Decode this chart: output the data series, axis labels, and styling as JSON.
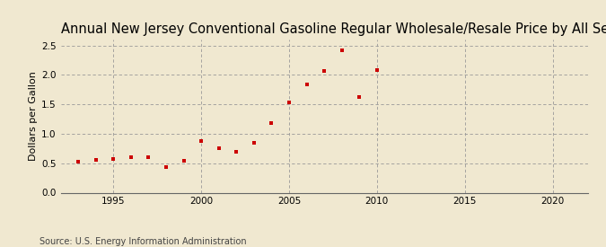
{
  "title": "Annual New Jersey Conventional Gasoline Regular Wholesale/Resale Price by All Sellers",
  "ylabel": "Dollars per Gallon",
  "source": "Source: U.S. Energy Information Administration",
  "background_color": "#f0e8d0",
  "plot_bg_color": "#f0e8d0",
  "marker_color": "#cc0000",
  "years": [
    1993,
    1994,
    1995,
    1996,
    1997,
    1998,
    1999,
    2000,
    2001,
    2002,
    2003,
    2004,
    2005,
    2006,
    2007,
    2008,
    2009,
    2010
  ],
  "values": [
    0.52,
    0.56,
    0.57,
    0.6,
    0.6,
    0.44,
    0.54,
    0.87,
    0.76,
    0.7,
    0.85,
    1.18,
    1.53,
    1.83,
    2.06,
    2.42,
    1.62,
    2.08
  ],
  "xlim": [
    1992,
    2022
  ],
  "ylim": [
    0.0,
    2.6
  ],
  "xticks": [
    1995,
    2000,
    2005,
    2010,
    2015,
    2020
  ],
  "yticks": [
    0.0,
    0.5,
    1.0,
    1.5,
    2.0,
    2.5
  ],
  "title_fontsize": 10.5,
  "label_fontsize": 8,
  "tick_fontsize": 7.5,
  "source_fontsize": 7
}
